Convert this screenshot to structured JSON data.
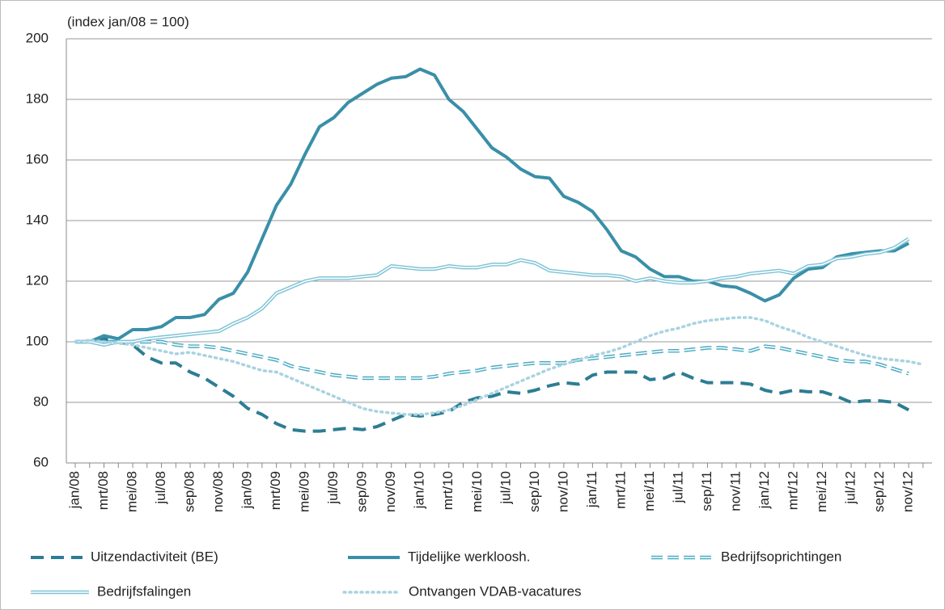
{
  "chart_data": {
    "type": "line",
    "title": "(index jan/08 = 100)",
    "categories": [
      "jan/08",
      null,
      "mrt/08",
      null,
      "mei/08",
      null,
      "jul/08",
      null,
      "sep/08",
      null,
      "nov/08",
      null,
      "jan/09",
      null,
      "mrt/09",
      null,
      "mei/09",
      null,
      "jul/09",
      null,
      "sep/09",
      null,
      "nov/09",
      null,
      "jan/10",
      null,
      "mrt/10",
      null,
      "mei/10",
      null,
      "jul/10",
      null,
      "sep/10",
      null,
      "nov/10",
      null,
      "jan/11",
      null,
      "mrt/11",
      null,
      "mei/11",
      null,
      "jul/11",
      null,
      "sep/11",
      null,
      "nov/11",
      null,
      "jan/12",
      null,
      "mrt/12",
      null,
      "mei/12",
      null,
      "jul/12",
      null,
      "sep/12",
      null,
      "nov/12",
      null
    ],
    "ylim": [
      60,
      200
    ],
    "yticks": [
      60,
      80,
      100,
      120,
      140,
      160,
      180,
      200
    ],
    "grid": true,
    "series": [
      {
        "name": "Uitzendactiviteit (BE)",
        "color": "#2d7d94",
        "style": "dashed",
        "values": [
          100,
          100,
          101,
          100,
          99,
          95,
          93,
          93,
          90,
          88,
          85,
          82,
          78,
          76,
          73,
          71,
          70.5,
          70.5,
          71,
          71.5,
          71,
          72,
          74,
          76,
          75.5,
          76,
          77,
          80,
          81.5,
          82,
          83.5,
          83,
          84,
          85.5,
          86.5,
          86,
          89,
          90,
          90,
          90,
          87.5,
          88,
          90,
          88,
          86.5,
          86.5,
          86.5,
          86,
          84,
          83,
          84,
          83.5,
          83.5,
          82,
          80,
          80.5,
          80.5,
          80,
          77.5,
          null
        ]
      },
      {
        "name": "Tijdelijke werkloosh.",
        "color": "#3a8fa8",
        "style": "solid",
        "values": [
          100,
          100,
          102,
          101,
          104,
          104,
          105,
          108,
          108,
          109,
          114,
          116,
          123,
          134,
          145,
          152,
          162,
          171,
          174,
          179,
          182,
          185,
          187,
          187.5,
          190,
          188,
          180,
          176,
          170,
          164,
          161,
          157,
          154.5,
          154,
          148,
          146,
          143,
          137,
          130,
          128,
          124,
          121.5,
          121.5,
          120,
          120,
          118.5,
          118,
          116,
          113.5,
          115.5,
          121,
          124,
          124.5,
          128,
          129,
          129.5,
          130,
          130,
          132.5,
          null
        ]
      },
      {
        "name": "Bedrijfsoprichtingen",
        "color": "#4aaac4",
        "style": "double-dashed",
        "values": [
          100,
          100,
          100,
          100,
          100,
          100,
          100,
          99,
          98.5,
          98.5,
          98,
          97,
          96,
          95,
          94,
          92,
          91,
          90,
          89,
          88.5,
          88,
          88,
          88,
          88,
          88,
          88.5,
          89.5,
          90,
          90.5,
          91.5,
          92,
          92.5,
          93,
          93,
          93,
          94,
          94.5,
          95,
          95.5,
          96,
          96.5,
          97,
          97,
          97.5,
          98,
          98,
          97.5,
          97,
          98.5,
          98,
          97,
          96,
          95,
          94,
          93.5,
          93.5,
          92.5,
          91,
          89.5,
          null
        ]
      },
      {
        "name": "Bedrijfsfalingen",
        "color": "#7ec3d6",
        "style": "double",
        "values": [
          100,
          100,
          99,
          100,
          100,
          101,
          101.5,
          102,
          102.5,
          103,
          103.5,
          106,
          108,
          111,
          116,
          118,
          120,
          121,
          121,
          121,
          121.5,
          122,
          125,
          124.5,
          124,
          124,
          125,
          124.5,
          124.5,
          125.5,
          125.5,
          127,
          126,
          123.5,
          123,
          122.5,
          122,
          122,
          121.5,
          120,
          121,
          120,
          119.5,
          119.5,
          120,
          121,
          121.5,
          122.5,
          123,
          123.5,
          122.5,
          125,
          125.5,
          127.5,
          128,
          129,
          129.5,
          131,
          134,
          null
        ]
      },
      {
        "name": "Ontvangen VDAB-vacatures",
        "color": "#a9d3e0",
        "style": "dotted",
        "values": [
          100,
          100.5,
          100,
          99.5,
          99,
          98,
          97,
          96,
          96.5,
          95.5,
          94.5,
          93.5,
          92,
          90.5,
          90,
          88,
          86,
          84,
          82,
          80,
          78,
          77,
          76.5,
          76,
          76,
          76.5,
          77.5,
          79,
          81,
          83,
          85,
          87,
          89,
          91,
          92.5,
          94,
          95.5,
          96.5,
          98,
          100,
          102,
          103.5,
          104.5,
          106,
          107,
          107.5,
          108,
          108,
          107,
          105,
          103.5,
          101.5,
          100,
          98.5,
          97,
          95.5,
          94.5,
          94,
          93.5,
          92.5
        ]
      }
    ]
  }
}
